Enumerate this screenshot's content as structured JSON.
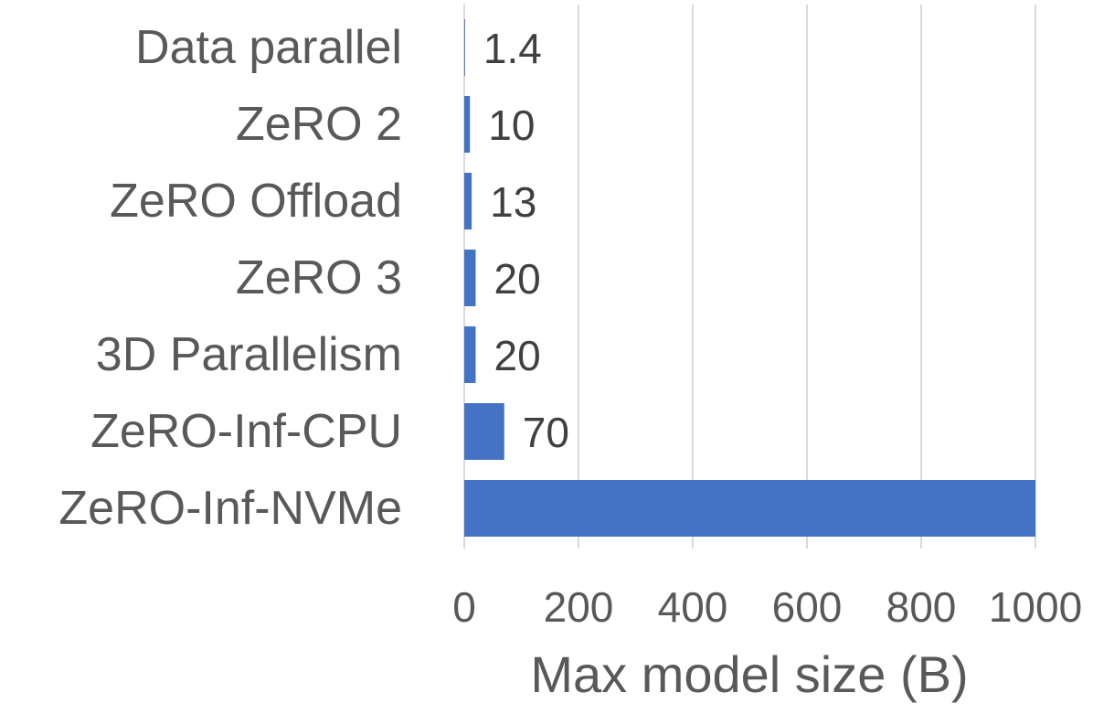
{
  "chart_data": {
    "type": "bar",
    "orientation": "horizontal",
    "categories": [
      "Data parallel",
      "ZeRO 2",
      "ZeRO Offload",
      "ZeRO 3",
      "3D Parallelism",
      "ZeRO-Inf-CPU",
      "ZeRO-Inf-NVMe"
    ],
    "values": [
      1.4,
      10,
      13,
      20,
      20,
      70,
      1000
    ],
    "data_labels": [
      "1.4",
      "10",
      "13",
      "20",
      "20",
      "70",
      ""
    ],
    "xlabel": "Max model size (B)",
    "xlim": [
      0,
      1000
    ],
    "xticks": [
      0,
      200,
      400,
      600,
      800,
      1000
    ],
    "xtick_labels": [
      "0",
      "200",
      "400",
      "600",
      "800",
      "1000"
    ],
    "grid": "vertical",
    "legend": "none",
    "bar_color": "#4472C4"
  }
}
